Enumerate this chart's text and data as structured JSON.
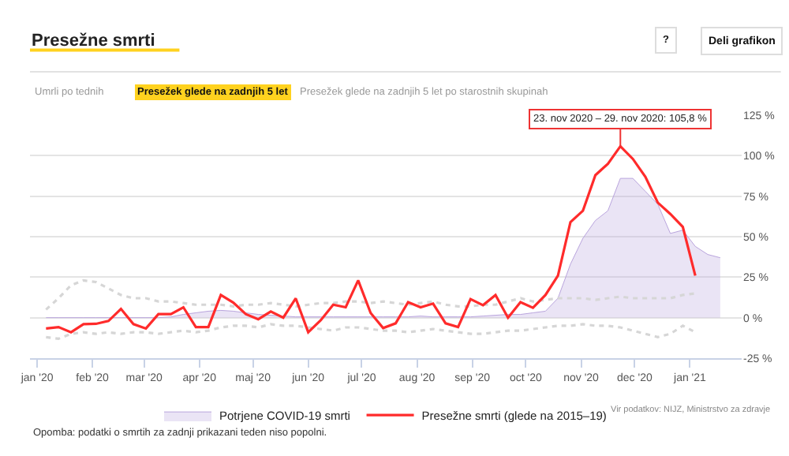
{
  "chart_data": {
    "type": "line",
    "title": "Presežne smrti",
    "x": [
      "2020-01-06",
      "2020-01-13",
      "2020-01-20",
      "2020-01-27",
      "2020-02-03",
      "2020-02-10",
      "2020-02-17",
      "2020-02-24",
      "2020-03-02",
      "2020-03-09",
      "2020-03-16",
      "2020-03-23",
      "2020-03-30",
      "2020-04-06",
      "2020-04-13",
      "2020-04-20",
      "2020-04-27",
      "2020-05-04",
      "2020-05-11",
      "2020-05-18",
      "2020-05-25",
      "2020-06-01",
      "2020-06-08",
      "2020-06-15",
      "2020-06-22",
      "2020-06-29",
      "2020-07-06",
      "2020-07-13",
      "2020-07-20",
      "2020-07-27",
      "2020-08-03",
      "2020-08-10",
      "2020-08-17",
      "2020-08-24",
      "2020-08-31",
      "2020-09-07",
      "2020-09-14",
      "2020-09-21",
      "2020-09-28",
      "2020-10-05",
      "2020-10-12",
      "2020-10-19",
      "2020-10-26",
      "2020-11-02",
      "2020-11-09",
      "2020-11-16",
      "2020-11-23",
      "2020-11-30",
      "2020-12-07",
      "2020-12-14",
      "2020-12-21",
      "2020-12-28",
      "2021-01-04",
      "2021-01-11",
      "2021-01-18"
    ],
    "series": [
      {
        "type": "area",
        "name": "Potrjene COVID-19 smrti",
        "color": "#b9a4dd",
        "values": [
          0,
          0,
          0,
          0,
          0,
          0,
          0,
          0,
          0,
          0,
          0.5,
          2,
          3,
          4,
          4.5,
          4,
          3,
          2,
          1.5,
          1,
          0.5,
          0.5,
          0.5,
          0.5,
          0.5,
          0.5,
          0.5,
          0.5,
          0.5,
          0.5,
          1,
          0.5,
          0.5,
          0.5,
          0.5,
          1,
          1.5,
          2,
          2,
          3,
          4,
          12,
          33,
          49,
          60,
          66,
          86,
          86,
          78,
          70,
          52,
          54,
          44,
          39,
          37
        ]
      },
      {
        "color": "#d6d6d6",
        "line_style": "dotted",
        "values": [
          5,
          12,
          20,
          23,
          22,
          18,
          14,
          12,
          12,
          10,
          10,
          9,
          8,
          8,
          8,
          7,
          8,
          8,
          9,
          8,
          7,
          8,
          9,
          9,
          10,
          10,
          9,
          10,
          9,
          8,
          9,
          10,
          8,
          7,
          7,
          8,
          8,
          10,
          12,
          10,
          11,
          12,
          12,
          12,
          11,
          12,
          13,
          12,
          12,
          12,
          12,
          14,
          15,
          null,
          null
        ]
      },
      {
        "color": "#d6d6d6",
        "line_style": "dotted",
        "values": [
          -12,
          -13,
          -10,
          -9,
          -10,
          -9,
          -10,
          -9,
          -9,
          -10,
          -9,
          -8,
          -9,
          -8,
          -6,
          -5,
          -5,
          -6,
          -4,
          -5,
          -5,
          -6,
          -7,
          -8,
          -6,
          -6,
          -7,
          -8,
          -8,
          -9,
          -8,
          -7,
          -8,
          -9,
          -10,
          -10,
          -9,
          -8,
          -8,
          -7,
          -6,
          -5,
          -5,
          -4,
          -5,
          -5,
          -6,
          -8,
          -10,
          -12,
          -10,
          -5,
          -9,
          null,
          null
        ]
      },
      {
        "type": "line",
        "name": "Presežne smrti (glede na 2015–19)",
        "color": "#ff2b2b",
        "values": [
          -6.7,
          -5.8,
          -9,
          -4,
          -3.8,
          -2,
          5.4,
          -4,
          -6.7,
          2.2,
          2.2,
          6.4,
          -5.8,
          -5.8,
          14,
          9.3,
          2.2,
          -1,
          3.8,
          0,
          11.9,
          -9,
          -1.6,
          8,
          6.4,
          23,
          2.9,
          -6.4,
          -3.5,
          9.6,
          6.4,
          8.7,
          -3.5,
          -5.8,
          11.5,
          7.7,
          14,
          0,
          9.6,
          6.1,
          14,
          26,
          59,
          66,
          88,
          95,
          105.8,
          98,
          87,
          71,
          64,
          56,
          26,
          null,
          null
        ]
      }
    ],
    "ylim": [
      -25,
      125
    ],
    "yticks": [
      {
        "value": -25,
        "label": "-25 %"
      },
      {
        "value": 0,
        "label": "0 %"
      },
      {
        "value": 25,
        "label": "25 %"
      },
      {
        "value": 50,
        "label": "50 %"
      },
      {
        "value": 75,
        "label": "75 %"
      },
      {
        "value": 100,
        "label": "100 %"
      },
      {
        "value": 125,
        "label": "125 %"
      }
    ],
    "xlim": [
      "2019-12-28",
      "2021-01-30"
    ],
    "xticks": [
      {
        "value": "2020-01-01",
        "label": "jan '20"
      },
      {
        "value": "2020-02-01",
        "label": "feb '20"
      },
      {
        "value": "2020-03-01",
        "label": "mar '20"
      },
      {
        "value": "2020-04-01",
        "label": "apr '20"
      },
      {
        "value": "2020-05-01",
        "label": "maj '20"
      },
      {
        "value": "2020-06-01",
        "label": "jun '20"
      },
      {
        "value": "2020-07-01",
        "label": "jul '20"
      },
      {
        "value": "2020-08-01",
        "label": "aug '20"
      },
      {
        "value": "2020-09-01",
        "label": "sep '20"
      },
      {
        "value": "2020-10-01",
        "label": "oct '20"
      },
      {
        "value": "2020-11-01",
        "label": "nov '20"
      },
      {
        "value": "2020-12-01",
        "label": "dec '20"
      },
      {
        "value": "2021-01-01",
        "label": "jan '21"
      }
    ],
    "grid": "y",
    "legend": "bottom",
    "marker": "none",
    "annotations": [
      "Umrli po tednih",
      "Presežek glede na zadnjih 5 let",
      "Presežek glede na zadnjih 5 let po starostnih skupinah",
      "?",
      "Deli grafikon",
      {
        "text": "23. nov 2020 – 29. nov 2020: 105,8 %",
        "x": "2020-11-23",
        "y": 105.8
      },
      "Vir podatkov: NIJZ, Ministrstvo za zdravje",
      "Opomba: podatki o smrtih za zadnji prikazani teden niso popolni."
    ]
  }
}
